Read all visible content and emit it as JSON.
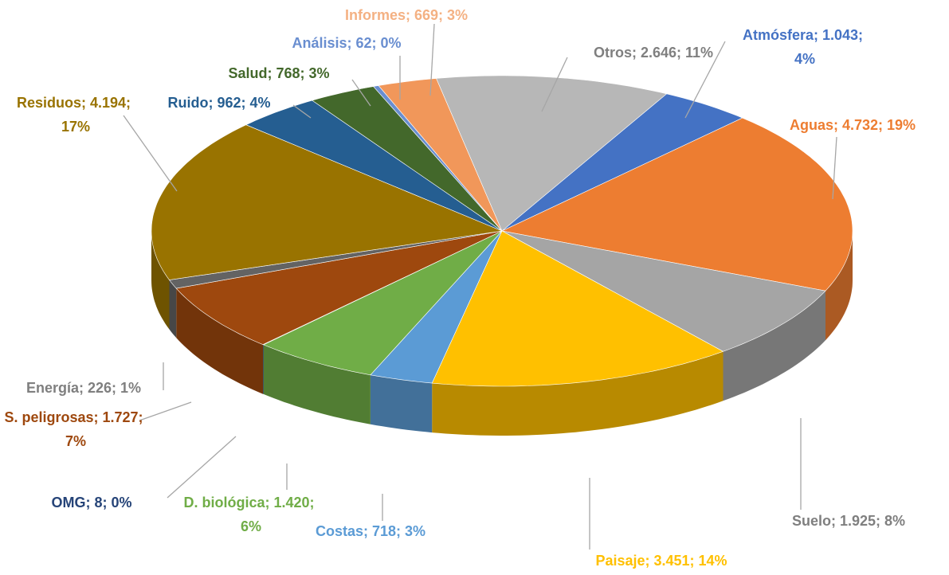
{
  "chart_data": {
    "type": "pie3d",
    "values": [
      1043,
      4732,
      1925,
      3451,
      718,
      1420,
      8,
      1727,
      226,
      4194,
      962,
      768,
      62,
      669,
      2646
    ],
    "value_labels": [
      "Atmósfera; 1.043; 4%",
      "Aguas; 4.732; 19%",
      "Suelo; 1.925; 8%",
      "Paisaje; 3.451; 14%",
      "Costas; 718; 3%",
      "D. biológica; 1.420; 6%",
      "OMG; 8; 0%",
      "S. peligrosas; 1.727; 7%",
      "Energía; 226; 1%",
      "Residuos; 4.194; 17%",
      "Ruido; 962; 4%",
      "Salud; 768; 3%",
      "Análisis; 62; 0%",
      "Informes; 669; 3%",
      "Otros; 2.646; 11%"
    ],
    "colors": [
      "#4472c4",
      "#ed7d31",
      "#a5a5a5",
      "#ffc000",
      "#5b9bd5",
      "#70ad47",
      "#264478",
      "#9e480e",
      "#636363",
      "#997300",
      "#255e91",
      "#43682b",
      "#698ed0",
      "#f1975a",
      "#b7b7b7"
    ]
  }
}
